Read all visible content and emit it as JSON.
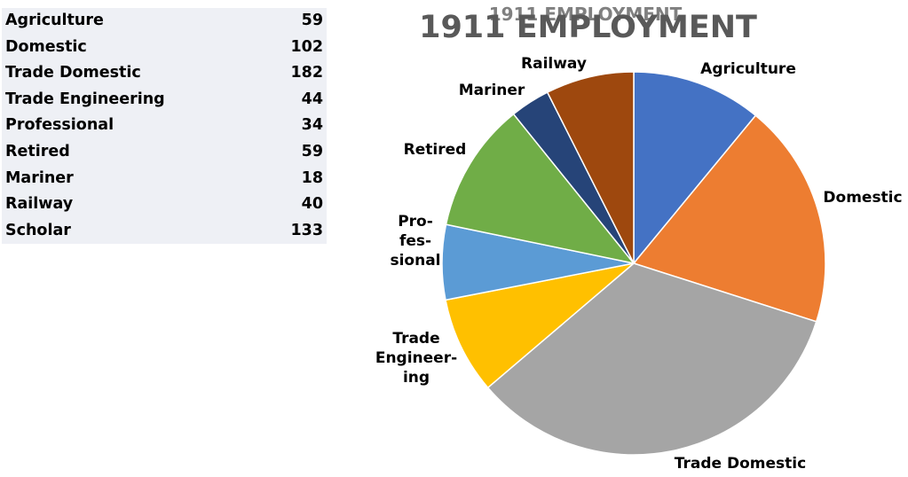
{
  "table": {
    "rows": [
      {
        "label": "Agriculture",
        "value": "59"
      },
      {
        "label": "Domestic",
        "value": "102"
      },
      {
        "label": "Trade Domestic",
        "value": "182"
      },
      {
        "label": "Trade Engineering",
        "value": "44"
      },
      {
        "label": "Professional",
        "value": "34"
      },
      {
        "label": "Retired",
        "value": "59"
      },
      {
        "label": "Mariner",
        "value": "18"
      },
      {
        "label": "Railway",
        "value": "40"
      },
      {
        "label": "Scholar",
        "value": "133"
      }
    ]
  },
  "chart_data": {
    "type": "pie",
    "title": "1911 EMPLOYMENT",
    "categories": [
      "Agriculture",
      "Domestic",
      "Trade Domestic",
      "Trade Engineering",
      "Professional",
      "Retired",
      "Mariner",
      "Railway"
    ],
    "values": [
      59,
      102,
      182,
      44,
      34,
      59,
      18,
      40
    ],
    "colors": [
      "#4472c4",
      "#ed7d31",
      "#a5a5a5",
      "#ffc000",
      "#5b9bd5",
      "#70ad47",
      "#264478",
      "#9e480e"
    ],
    "slice_labels": [
      [
        "Agriculture"
      ],
      [
        "Domestic"
      ],
      [
        "Trade Domestic"
      ],
      [
        "Trade",
        "Engineer-",
        "ing"
      ],
      [
        "Pro-",
        "fes-",
        "sional"
      ],
      [
        "Retired"
      ],
      [
        "Mariner"
      ],
      [
        "Railway"
      ]
    ]
  }
}
